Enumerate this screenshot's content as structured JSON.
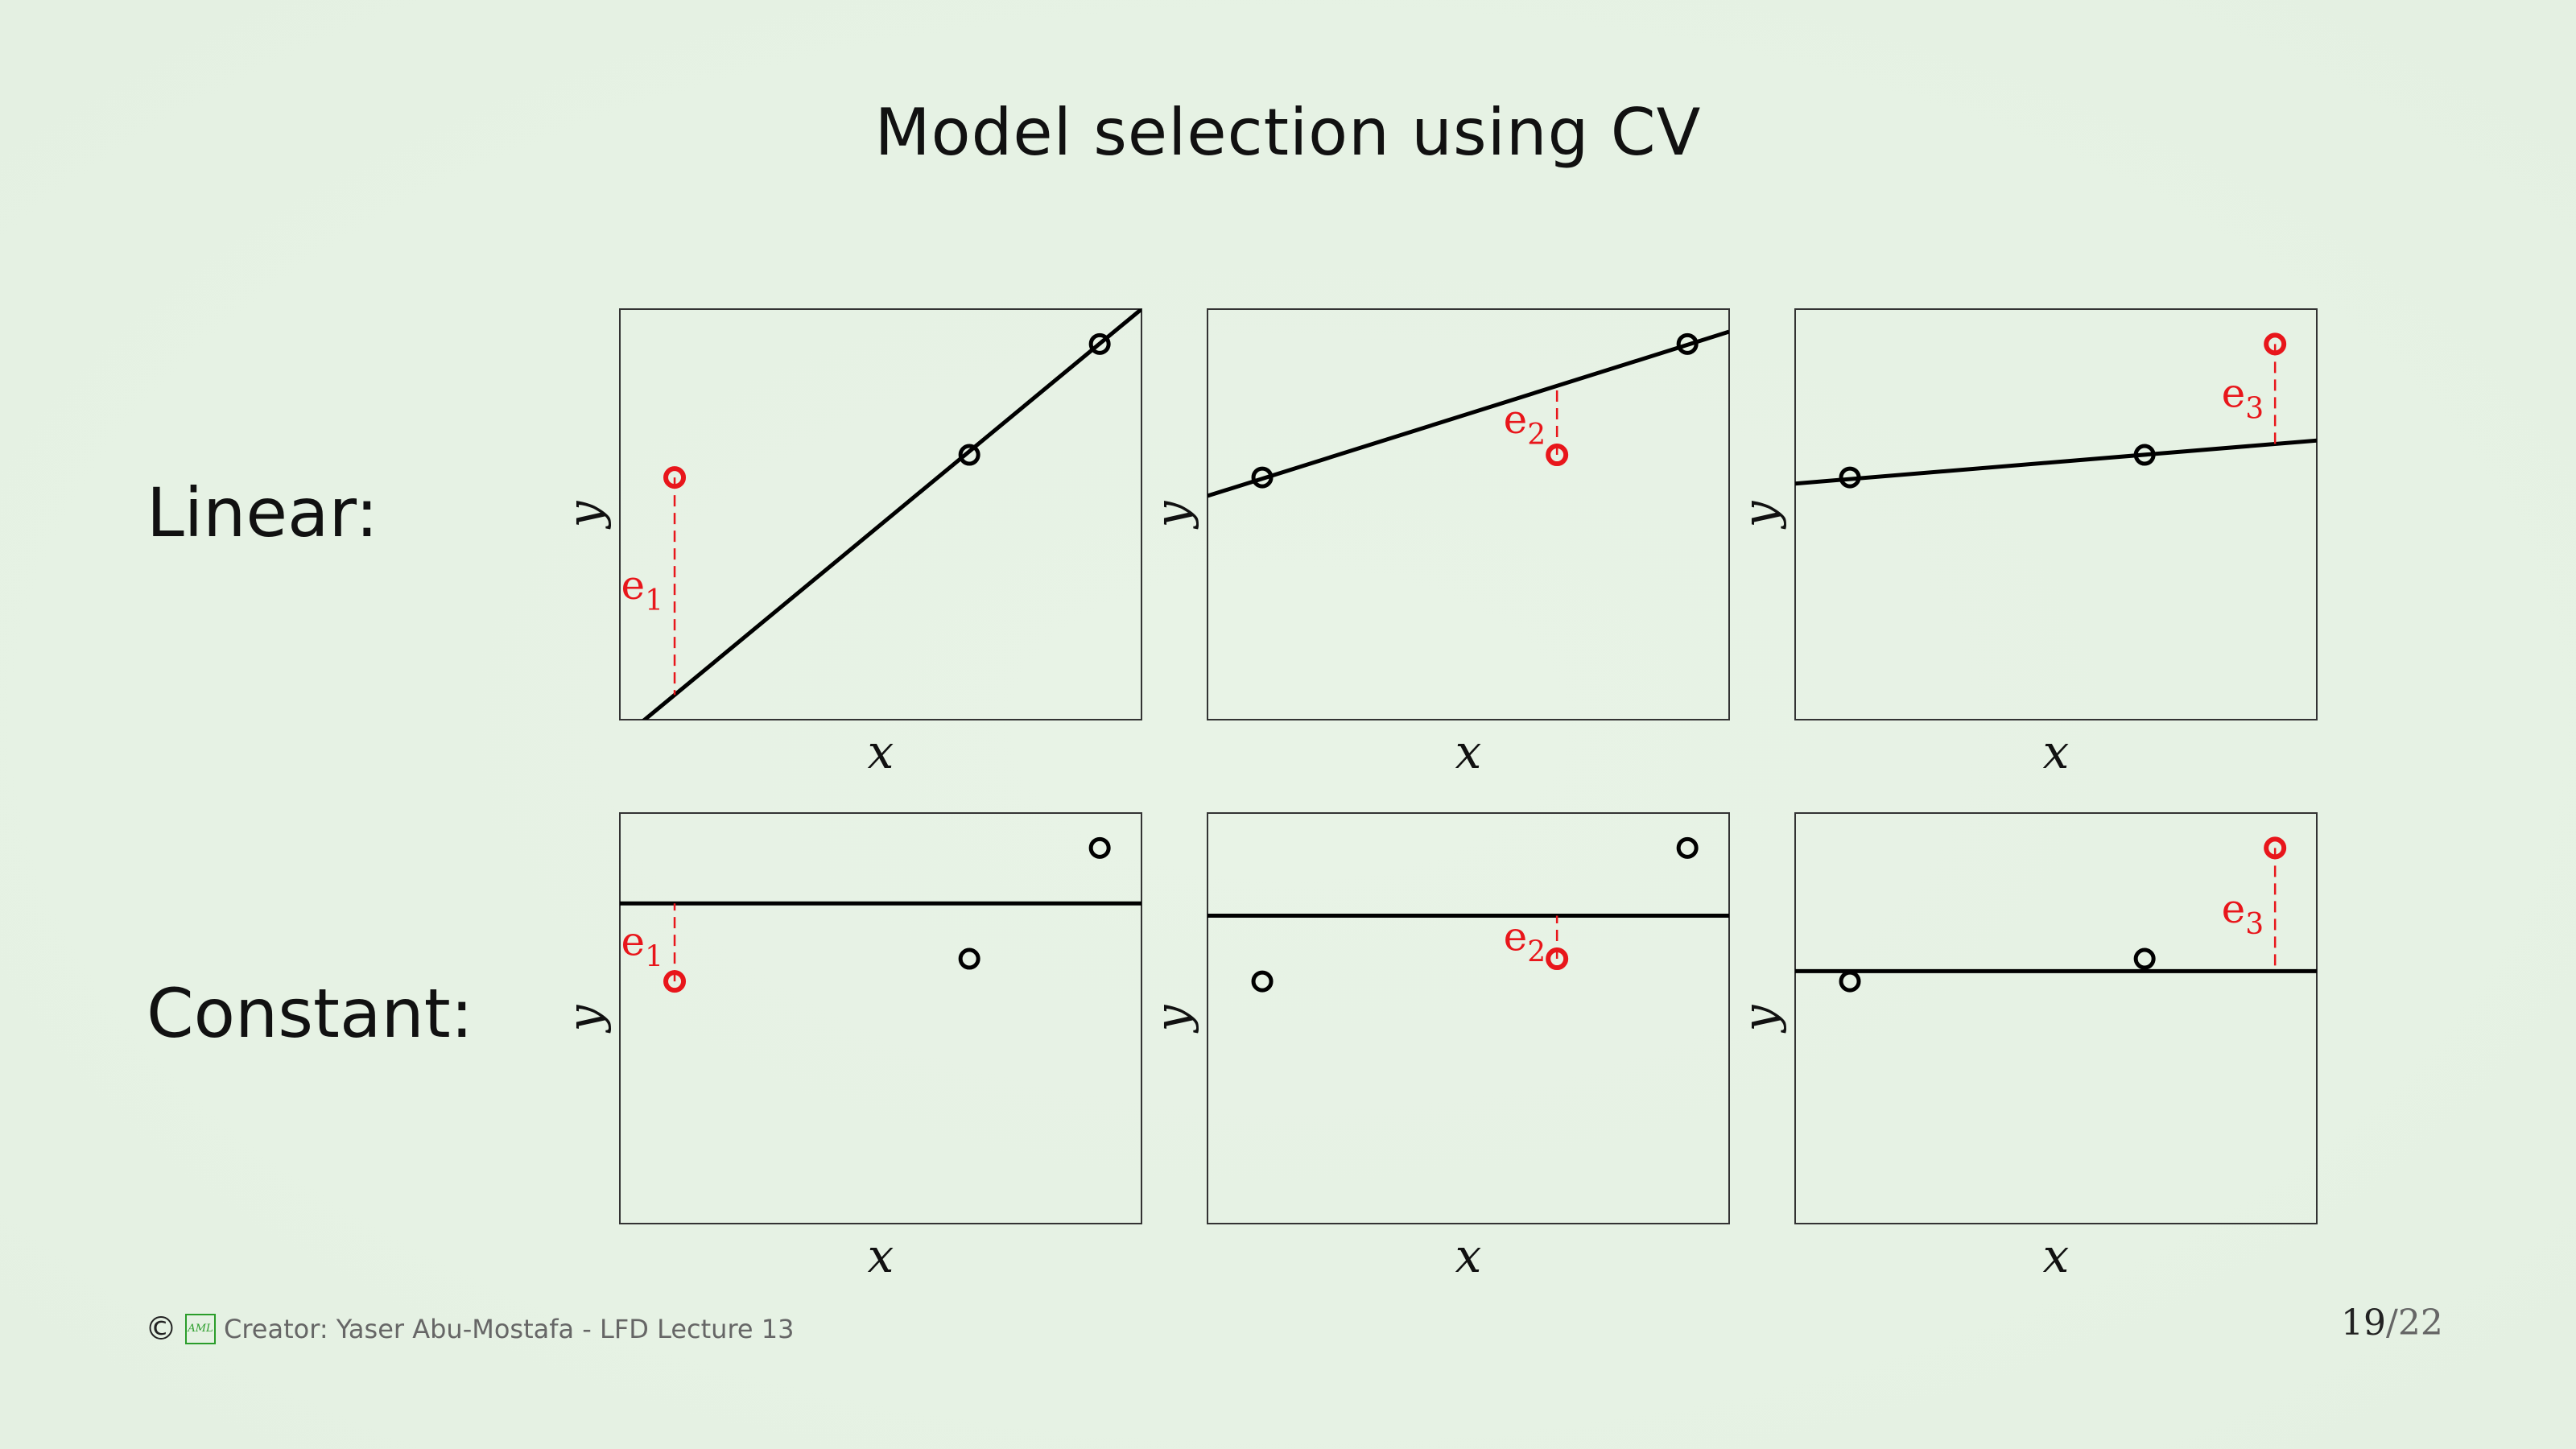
{
  "slide": {
    "title": "Model selection using CV",
    "rows": [
      {
        "label": "Linear:"
      },
      {
        "label": "Constant:"
      }
    ],
    "axis_labels": {
      "x": "x",
      "y": "y"
    },
    "error_labels": [
      "e",
      "e",
      "e"
    ],
    "error_subscripts": [
      "1",
      "2",
      "3"
    ],
    "footer": {
      "copyright_symbol": "©",
      "logo_text": "AML",
      "creator": "Creator: Yaser Abu-Mostafa - LFD Lecture 13"
    },
    "page": {
      "current": "19",
      "separator": "/",
      "total": "22"
    },
    "colors": {
      "held_out": "#e8161b",
      "line": "#000000",
      "frame": "#333333"
    }
  },
  "diagram": {
    "points": [
      {
        "x": 0.105,
        "y": 0.59
      },
      {
        "x": 0.67,
        "y": 0.645
      },
      {
        "x": 0.92,
        "y": 0.915
      }
    ],
    "panels": [
      {
        "model": "linear",
        "held_out": 0,
        "fit": {
          "y_at_left": -0.05,
          "y_at_right": 1.0
        }
      },
      {
        "model": "linear",
        "held_out": 1,
        "fit": {
          "y_at_left": 0.545,
          "y_at_right": 0.945
        }
      },
      {
        "model": "linear",
        "held_out": 2,
        "fit": {
          "y_at_left": 0.575,
          "y_at_right": 0.68
        }
      },
      {
        "model": "constant",
        "held_out": 0,
        "fit": {
          "y_at_left": 0.78,
          "y_at_right": 0.78
        }
      },
      {
        "model": "constant",
        "held_out": 1,
        "fit": {
          "y_at_left": 0.75,
          "y_at_right": 0.75
        }
      },
      {
        "model": "constant",
        "held_out": 2,
        "fit": {
          "y_at_left": 0.615,
          "y_at_right": 0.615
        }
      }
    ]
  }
}
